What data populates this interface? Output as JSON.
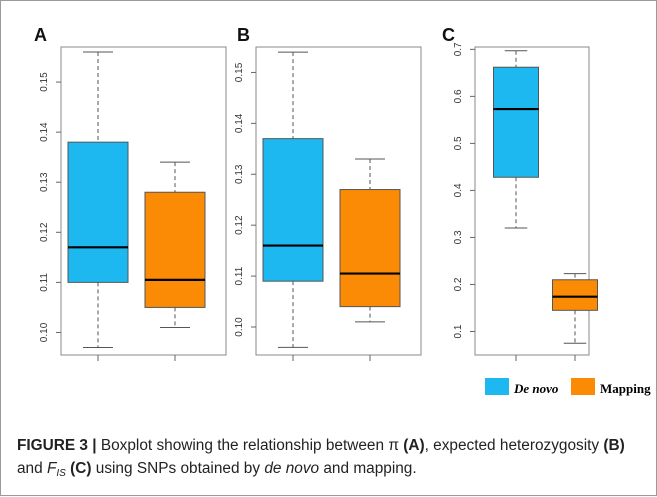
{
  "figure": {
    "figure_label": "FIGURE 3 |",
    "caption_parts": [
      {
        "t": "Boxplot showing the relationship between π "
      },
      {
        "t": "(A)",
        "b": true
      },
      {
        "t": ", expected heterozygosity "
      },
      {
        "t": "(B)",
        "b": true
      },
      {
        "t": " and "
      },
      {
        "t": "F",
        "i": true
      },
      {
        "t": "IS",
        "sub": true,
        "i": true
      },
      {
        "t": " "
      },
      {
        "t": "(C)",
        "b": true
      },
      {
        "t": " using SNPs obtained by "
      },
      {
        "t": "de novo",
        "i": true
      },
      {
        "t": " and mapping."
      }
    ]
  },
  "legend": {
    "items": [
      {
        "label": "De novo",
        "color": "#1db8ef",
        "italic": true
      },
      {
        "label": "Mapping",
        "color": "#fb8a04",
        "italic": false
      }
    ]
  },
  "colors": {
    "de_novo": "#1db8ef",
    "mapping": "#fb8a04",
    "frame": "#888888",
    "whisker": "#555555"
  },
  "chart_data": [
    {
      "type": "box",
      "panel_label": "A",
      "ylim": [
        0.0955,
        0.157
      ],
      "yticks": [
        0.1,
        0.11,
        0.12,
        0.13,
        0.14,
        0.15
      ],
      "tick_labels": [
        "0.10",
        "0.11",
        "0.12",
        "0.13",
        "0.14",
        "0.15"
      ],
      "series": [
        {
          "name": "De novo",
          "min": 0.097,
          "q1": 0.11,
          "median": 0.117,
          "q3": 0.138,
          "max": 0.156
        },
        {
          "name": "Mapping",
          "min": 0.101,
          "q1": 0.105,
          "median": 0.1105,
          "q3": 0.128,
          "max": 0.134
        }
      ]
    },
    {
      "type": "box",
      "panel_label": "B",
      "ylim": [
        0.0945,
        0.155
      ],
      "yticks": [
        0.1,
        0.11,
        0.12,
        0.13,
        0.14,
        0.15
      ],
      "tick_labels": [
        "0.10",
        "0.11",
        "0.12",
        "0.13",
        "0.14",
        "0.15"
      ],
      "series": [
        {
          "name": "De novo",
          "min": 0.096,
          "q1": 0.109,
          "median": 0.116,
          "q3": 0.137,
          "max": 0.154
        },
        {
          "name": "Mapping",
          "min": 0.101,
          "q1": 0.104,
          "median": 0.1105,
          "q3": 0.127,
          "max": 0.133
        }
      ]
    },
    {
      "type": "box",
      "panel_label": "C",
      "ylim": [
        0.05,
        0.705
      ],
      "yticks": [
        0.1,
        0.2,
        0.3,
        0.4,
        0.5,
        0.6,
        0.7
      ],
      "tick_labels": [
        "0.1",
        "0.2",
        "0.3",
        "0.4",
        "0.5",
        "0.6",
        "0.7"
      ],
      "series": [
        {
          "name": "De novo",
          "min": 0.32,
          "q1": 0.428,
          "median": 0.573,
          "q3": 0.662,
          "max": 0.697
        },
        {
          "name": "Mapping",
          "min": 0.075,
          "q1": 0.145,
          "median": 0.174,
          "q3": 0.21,
          "max": 0.223
        }
      ]
    }
  ]
}
